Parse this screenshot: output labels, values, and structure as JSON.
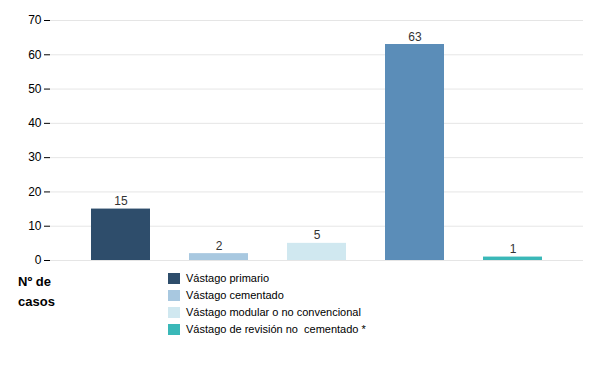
{
  "chart_data": {
    "type": "bar",
    "categories": [
      null,
      null,
      null,
      null,
      null
    ],
    "values": [
      15,
      2,
      5,
      63,
      1
    ],
    "colors": [
      "#2e4d6b",
      "#a8c8e0",
      "#d0e8f0",
      "#5b8db8",
      "#3ab8b8"
    ],
    "data_labels": true,
    "ylabel": "Nº de\ncasos",
    "ylim": [
      0,
      70
    ],
    "yticks": [
      0,
      10,
      20,
      30,
      40,
      50,
      60,
      70
    ],
    "grid": true,
    "tick_labels": "y",
    "legend": "bottom",
    "legend_labels": [
      "Vástago primario",
      "Vástago cementado",
      "Vástago modular o no convencional",
      "Vástago de revisión no  cementado *"
    ],
    "legend_colors": [
      "#2e4d6b",
      "#a8c8e0",
      "#d0e8f0",
      "#3ab8b8"
    ]
  }
}
